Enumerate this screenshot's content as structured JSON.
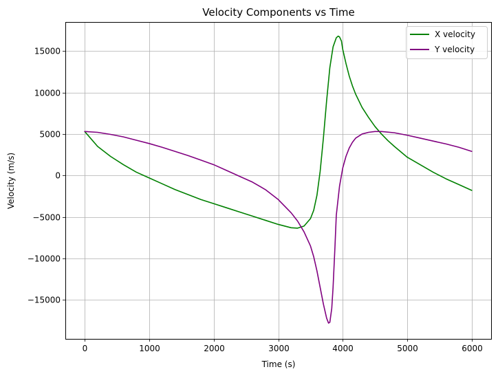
{
  "chart_data": {
    "type": "line",
    "title": "Velocity Components vs Time",
    "xlabel": "Time (s)",
    "ylabel": "Velocity (m/s)",
    "xlim": [
      -300,
      6300
    ],
    "ylim": [
      -19700,
      18500
    ],
    "xticks": [
      0,
      1000,
      2000,
      3000,
      4000,
      5000,
      6000
    ],
    "xtick_labels": [
      "0",
      "1000",
      "2000",
      "3000",
      "4000",
      "5000",
      "6000"
    ],
    "yticks": [
      -15000,
      -10000,
      -5000,
      0,
      5000,
      10000,
      15000
    ],
    "ytick_labels": [
      "−15000",
      "−10000",
      "−5000",
      "0",
      "5000",
      "10000",
      "15000"
    ],
    "grid": true,
    "legend_position": "top-right",
    "series": [
      {
        "name": "X velocity",
        "color": "#008000",
        "x": [
          0,
          200,
          400,
          600,
          800,
          1000,
          1200,
          1400,
          1600,
          1800,
          2000,
          2200,
          2400,
          2600,
          2800,
          3000,
          3200,
          3300,
          3400,
          3500,
          3550,
          3600,
          3650,
          3700,
          3750,
          3800,
          3850,
          3900,
          3930,
          3950,
          3980,
          4000,
          4050,
          4100,
          4150,
          4200,
          4300,
          4400,
          4500,
          4600,
          4700,
          4800,
          5000,
          5200,
          5400,
          5600,
          5800,
          6000
        ],
        "y": [
          5300,
          3500,
          2300,
          1300,
          400,
          -300,
          -1000,
          -1700,
          -2300,
          -2900,
          -3400,
          -3900,
          -4400,
          -4900,
          -5400,
          -5900,
          -6300,
          -6350,
          -6100,
          -5200,
          -4200,
          -2400,
          500,
          4500,
          9000,
          13000,
          15500,
          16600,
          16800,
          16700,
          16200,
          15200,
          13500,
          12000,
          10800,
          9800,
          8200,
          7000,
          5900,
          5000,
          4200,
          3500,
          2200,
          1300,
          400,
          -400,
          -1100,
          -1800
        ]
      },
      {
        "name": "Y velocity",
        "color": "#800080",
        "x": [
          0,
          200,
          400,
          600,
          800,
          1000,
          1200,
          1400,
          1600,
          1800,
          2000,
          2200,
          2400,
          2600,
          2800,
          3000,
          3100,
          3200,
          3300,
          3400,
          3500,
          3550,
          3600,
          3650,
          3700,
          3750,
          3780,
          3800,
          3830,
          3850,
          3880,
          3900,
          3950,
          4000,
          4050,
          4100,
          4150,
          4200,
          4300,
          4400,
          4500,
          4600,
          4800,
          5000,
          5200,
          5400,
          5600,
          5800,
          6000
        ],
        "y": [
          5300,
          5200,
          4950,
          4650,
          4250,
          3850,
          3400,
          2900,
          2400,
          1850,
          1300,
          600,
          -100,
          -800,
          -1700,
          -2900,
          -3700,
          -4500,
          -5500,
          -6800,
          -8500,
          -9800,
          -11500,
          -13500,
          -15500,
          -17200,
          -17800,
          -17700,
          -16000,
          -13500,
          -8500,
          -4800,
          -1300,
          900,
          2300,
          3300,
          4000,
          4500,
          5000,
          5200,
          5300,
          5300,
          5150,
          4850,
          4500,
          4150,
          3800,
          3400,
          2900
        ]
      }
    ]
  }
}
